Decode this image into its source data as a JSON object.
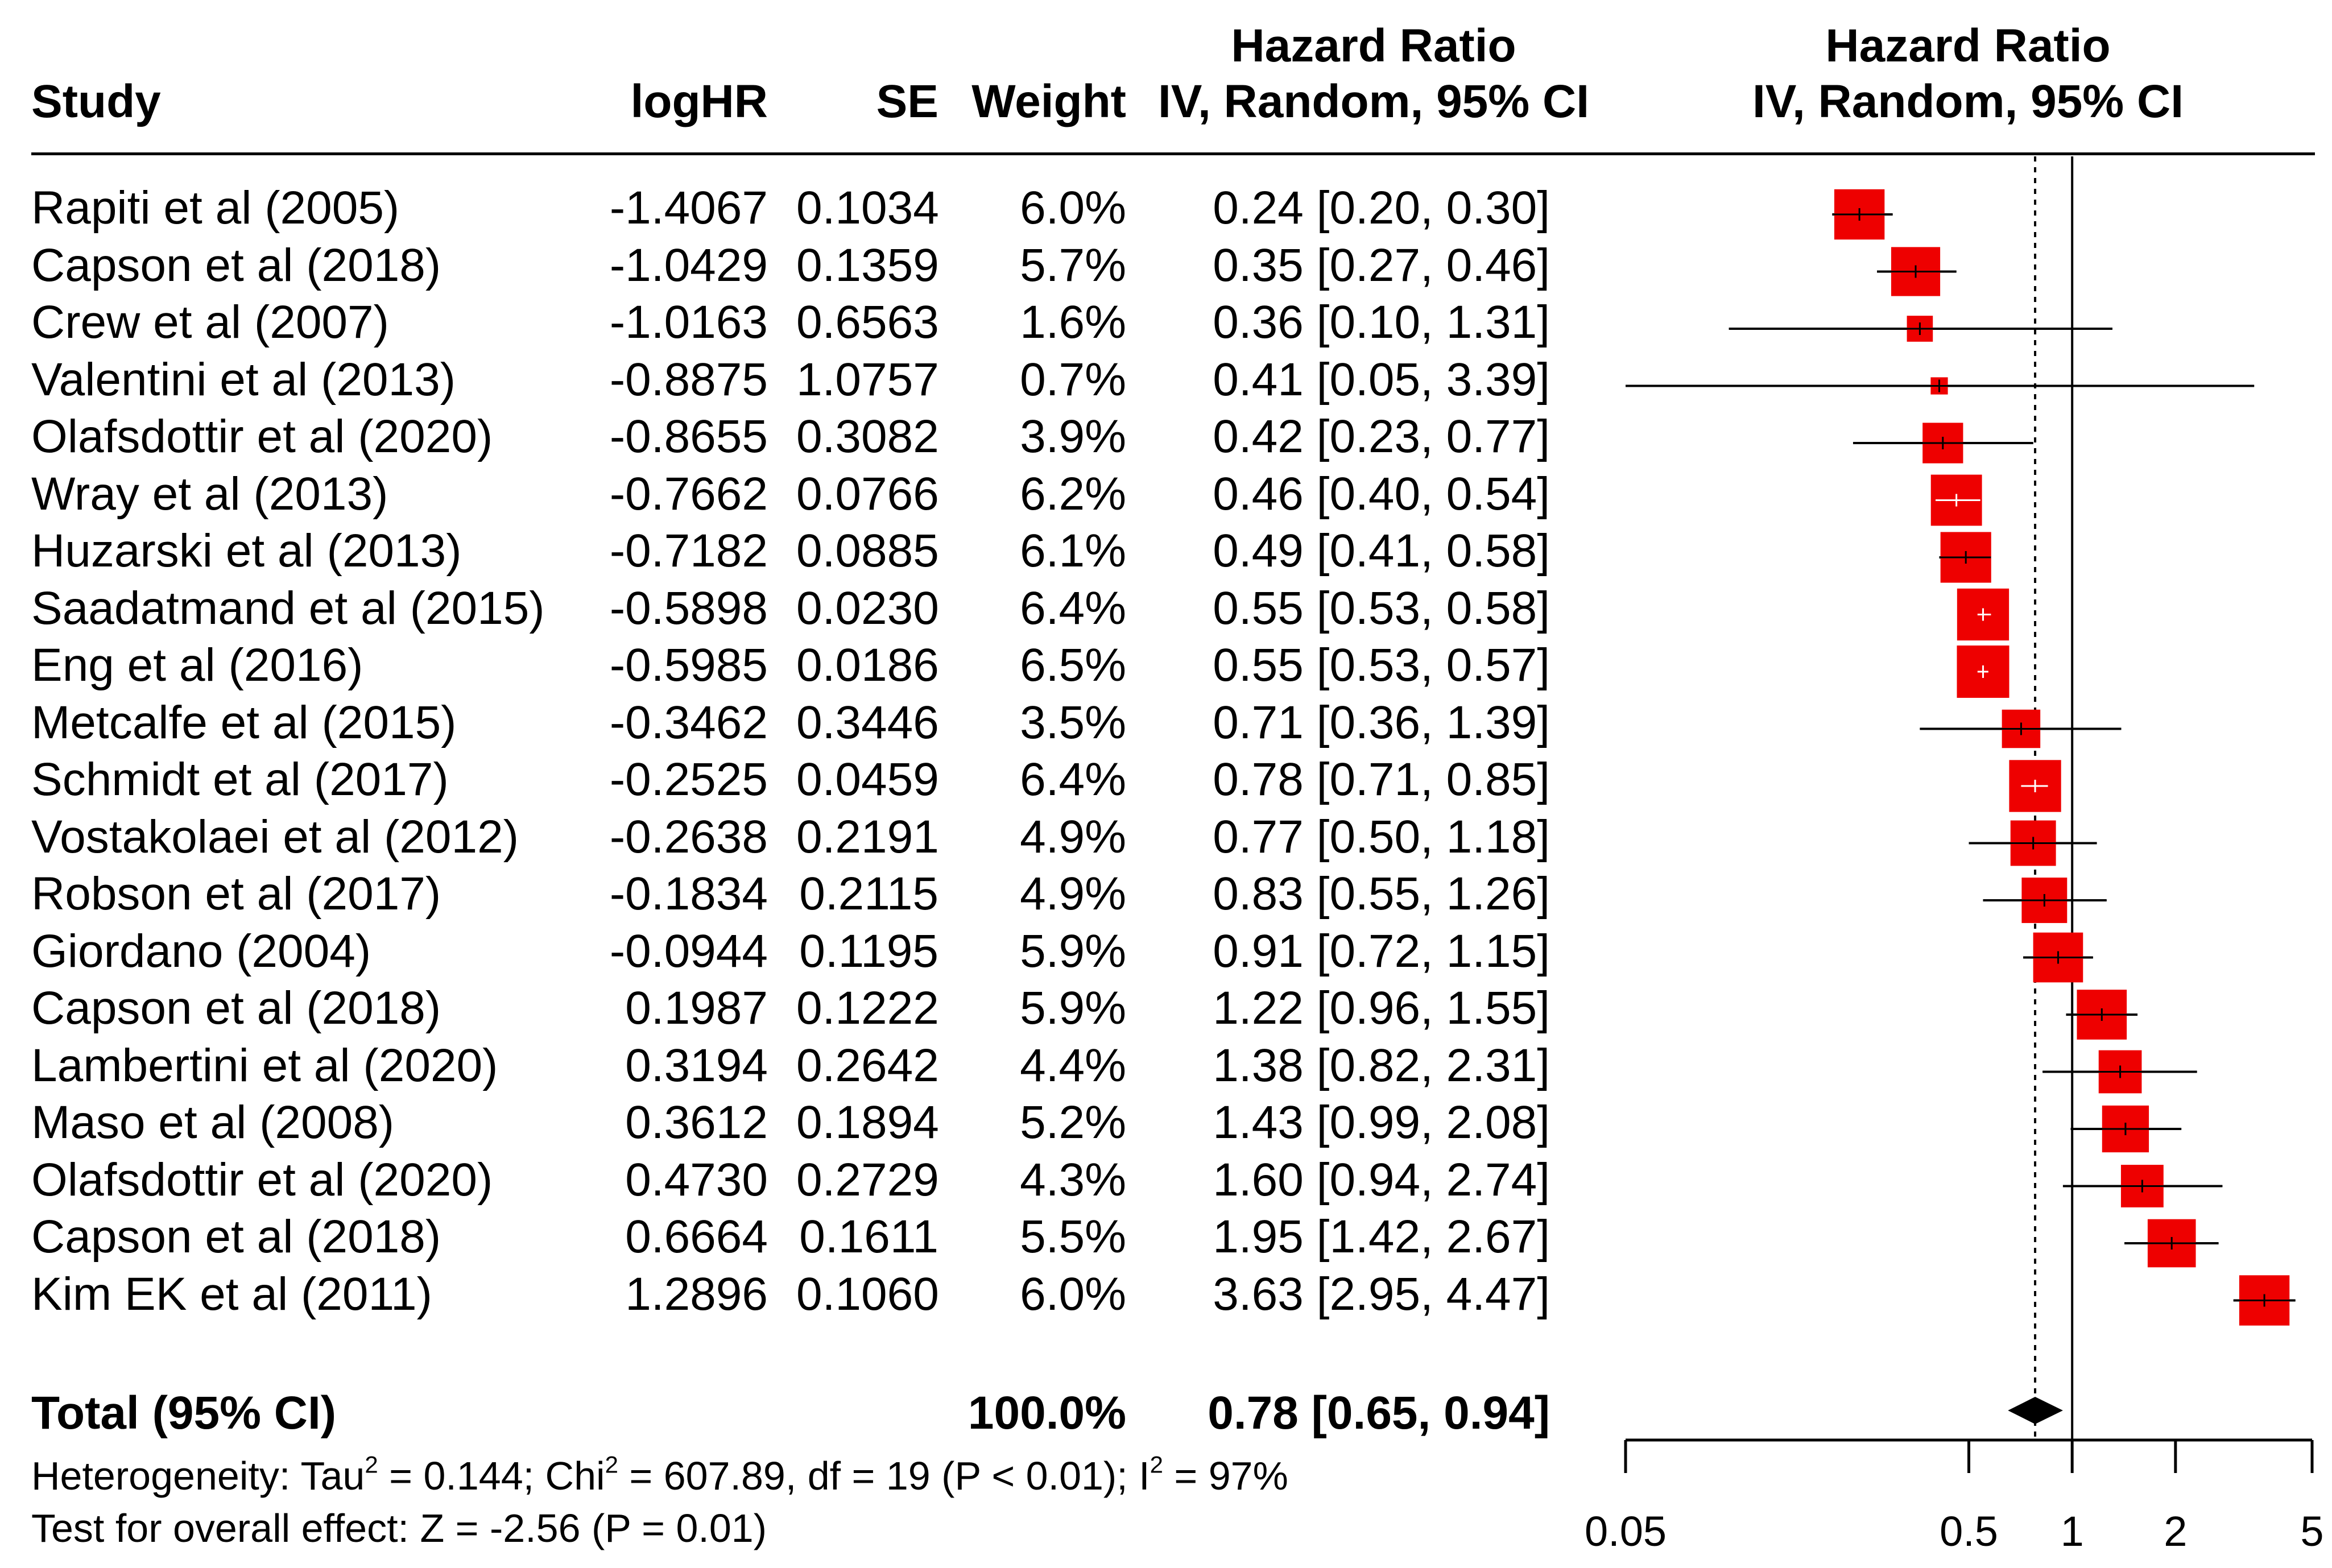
{
  "headers": {
    "study": "Study",
    "loghr": "logHR",
    "se": "SE",
    "weight": "Weight",
    "hr_col_line1": "Hazard Ratio",
    "hr_col_line2": "IV, Random, 95% CI",
    "plot_line1": "Hazard Ratio",
    "plot_line2": "IV, Random, 95% CI"
  },
  "total": {
    "label": "Total (95% CI)",
    "weight": "100.0%",
    "ci_text": "0.78 [0.65, 0.94]"
  },
  "footer": {
    "het_pre": "Heterogeneity: Tau",
    "het_tau_sup": "2",
    "het_mid1": " = 0.144; Chi",
    "het_chi_sup": "2",
    "het_mid2": " = 607.89, df = 19 (P < 0.01); I",
    "het_i_sup": "2",
    "het_post": " = 97%",
    "overall": "Test for overall effect: Z = -2.56 (P = 0.01)"
  },
  "chart_data": {
    "type": "forest",
    "xscale": "log",
    "xlim": [
      0.05,
      5
    ],
    "xticks": [
      0.05,
      0.5,
      1,
      2,
      5
    ],
    "xtick_labels": [
      "0.05",
      "0.5",
      "1",
      "2",
      "5"
    ],
    "null_line": 1,
    "pooled_line": 0.78,
    "marker_color": "#ee0000",
    "studies": [
      {
        "study": "Rapiti et al (2005)",
        "loghr": "-1.4067",
        "se": "0.1034",
        "weight": "6.0%",
        "hr": 0.24,
        "lo": 0.2,
        "hi": 0.3,
        "ci_text": "0.24 [0.20, 0.30]"
      },
      {
        "study": "Capson et al (2018)",
        "loghr": "-1.0429",
        "se": "0.1359",
        "weight": "5.7%",
        "hr": 0.35,
        "lo": 0.27,
        "hi": 0.46,
        "ci_text": "0.35 [0.27, 0.46]"
      },
      {
        "study": "Crew et al  (2007)",
        "loghr": "-1.0163",
        "se": "0.6563",
        "weight": "1.6%",
        "hr": 0.36,
        "lo": 0.1,
        "hi": 1.31,
        "ci_text": "0.36 [0.10, 1.31]"
      },
      {
        "study": "Valentini et al (2013)",
        "loghr": "-0.8875",
        "se": "1.0757",
        "weight": "0.7%",
        "hr": 0.41,
        "lo": 0.05,
        "hi": 3.39,
        "ci_text": "0.41 [0.05, 3.39]"
      },
      {
        "study": "Olafsdottir et al  (2020)",
        "loghr": "-0.8655",
        "se": "0.3082",
        "weight": "3.9%",
        "hr": 0.42,
        "lo": 0.23,
        "hi": 0.77,
        "ci_text": "0.42 [0.23, 0.77]"
      },
      {
        "study": "Wray et al (2013)",
        "loghr": "-0.7662",
        "se": "0.0766",
        "weight": "6.2%",
        "hr": 0.46,
        "lo": 0.4,
        "hi": 0.54,
        "ci_text": "0.46 [0.40, 0.54]"
      },
      {
        "study": "Huzarski et al (2013)",
        "loghr": "-0.7182",
        "se": "0.0885",
        "weight": "6.1%",
        "hr": 0.49,
        "lo": 0.41,
        "hi": 0.58,
        "ci_text": "0.49 [0.41, 0.58]"
      },
      {
        "study": "Saadatmand et al  (2015)",
        "loghr": "-0.5898",
        "se": "0.0230",
        "weight": "6.4%",
        "hr": 0.55,
        "lo": 0.53,
        "hi": 0.58,
        "ci_text": "0.55 [0.53, 0.58]"
      },
      {
        "study": "Eng et al (2016)",
        "loghr": "-0.5985",
        "se": "0.0186",
        "weight": "6.5%",
        "hr": 0.55,
        "lo": 0.53,
        "hi": 0.57,
        "ci_text": "0.55 [0.53, 0.57]"
      },
      {
        "study": "Metcalfe et al (2015)",
        "loghr": "-0.3462",
        "se": "0.3446",
        "weight": "3.5%",
        "hr": 0.71,
        "lo": 0.36,
        "hi": 1.39,
        "ci_text": "0.71 [0.36, 1.39]"
      },
      {
        "study": "Schmidt et al (2017)",
        "loghr": "-0.2525",
        "se": "0.0459",
        "weight": "6.4%",
        "hr": 0.78,
        "lo": 0.71,
        "hi": 0.85,
        "ci_text": "0.78 [0.71, 0.85]"
      },
      {
        "study": "Vostakolaei et al (2012)",
        "loghr": "-0.2638",
        "se": "0.2191",
        "weight": "4.9%",
        "hr": 0.77,
        "lo": 0.5,
        "hi": 1.18,
        "ci_text": "0.77 [0.50, 1.18]"
      },
      {
        "study": "Robson et al  (2017)",
        "loghr": "-0.1834",
        "se": "0.2115",
        "weight": "4.9%",
        "hr": 0.83,
        "lo": 0.55,
        "hi": 1.26,
        "ci_text": "0.83 [0.55, 1.26]"
      },
      {
        "study": "Giordano (2004)",
        "loghr": "-0.0944",
        "se": "0.1195",
        "weight": "5.9%",
        "hr": 0.91,
        "lo": 0.72,
        "hi": 1.15,
        "ci_text": "0.91 [0.72, 1.15]"
      },
      {
        "study": "Capson et al (2018)",
        "loghr": "0.1987",
        "se": "0.1222",
        "weight": "5.9%",
        "hr": 1.22,
        "lo": 0.96,
        "hi": 1.55,
        "ci_text": "1.22 [0.96, 1.55]"
      },
      {
        "study": "Lambertini et al (2020)",
        "loghr": "0.3194",
        "se": "0.2642",
        "weight": "4.4%",
        "hr": 1.38,
        "lo": 0.82,
        "hi": 2.31,
        "ci_text": "1.38 [0.82, 2.31]"
      },
      {
        "study": "Maso et al (2008)",
        "loghr": "0.3612",
        "se": "0.1894",
        "weight": "5.2%",
        "hr": 1.43,
        "lo": 0.99,
        "hi": 2.08,
        "ci_text": "1.43 [0.99, 2.08]"
      },
      {
        "study": "Olafsdottir et al  (2020)",
        "loghr": "0.4730",
        "se": "0.2729",
        "weight": "4.3%",
        "hr": 1.6,
        "lo": 0.94,
        "hi": 2.74,
        "ci_text": "1.60 [0.94, 2.74]"
      },
      {
        "study": "Capson et al (2018)",
        "loghr": "0.6664",
        "se": "0.1611",
        "weight": "5.5%",
        "hr": 1.95,
        "lo": 1.42,
        "hi": 2.67,
        "ci_text": "1.95 [1.42, 2.67]"
      },
      {
        "study": "Kim EK et al (2011)",
        "loghr": "1.2896",
        "se": "0.1060",
        "weight": "6.0%",
        "hr": 3.63,
        "lo": 2.95,
        "hi": 4.47,
        "ci_text": "3.63 [2.95, 4.47]"
      }
    ],
    "pooled": {
      "hr": 0.78,
      "lo": 0.65,
      "hi": 0.94
    }
  }
}
